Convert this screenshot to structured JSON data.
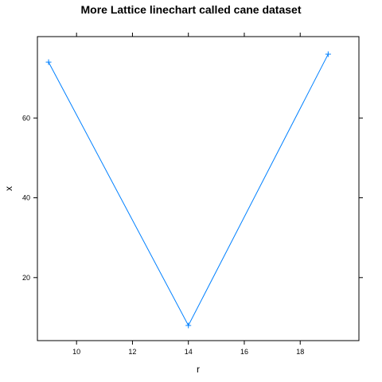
{
  "chart_data": {
    "type": "line",
    "title": "More Lattice linechart called cane dataset",
    "xlabel": "r",
    "ylabel": "x",
    "xlim": [
      8.6,
      20.1
    ],
    "ylim": [
      4.2,
      80.4
    ],
    "x_ticks": [
      10,
      12,
      14,
      16,
      18
    ],
    "y_ticks": [
      20,
      40,
      60
    ],
    "series": [
      {
        "color": "#0080ff",
        "marker": "plus",
        "points": [
          {
            "x": 9,
            "y": 74
          },
          {
            "x": 14,
            "y": 8
          },
          {
            "x": 19,
            "y": 76
          }
        ]
      }
    ]
  }
}
